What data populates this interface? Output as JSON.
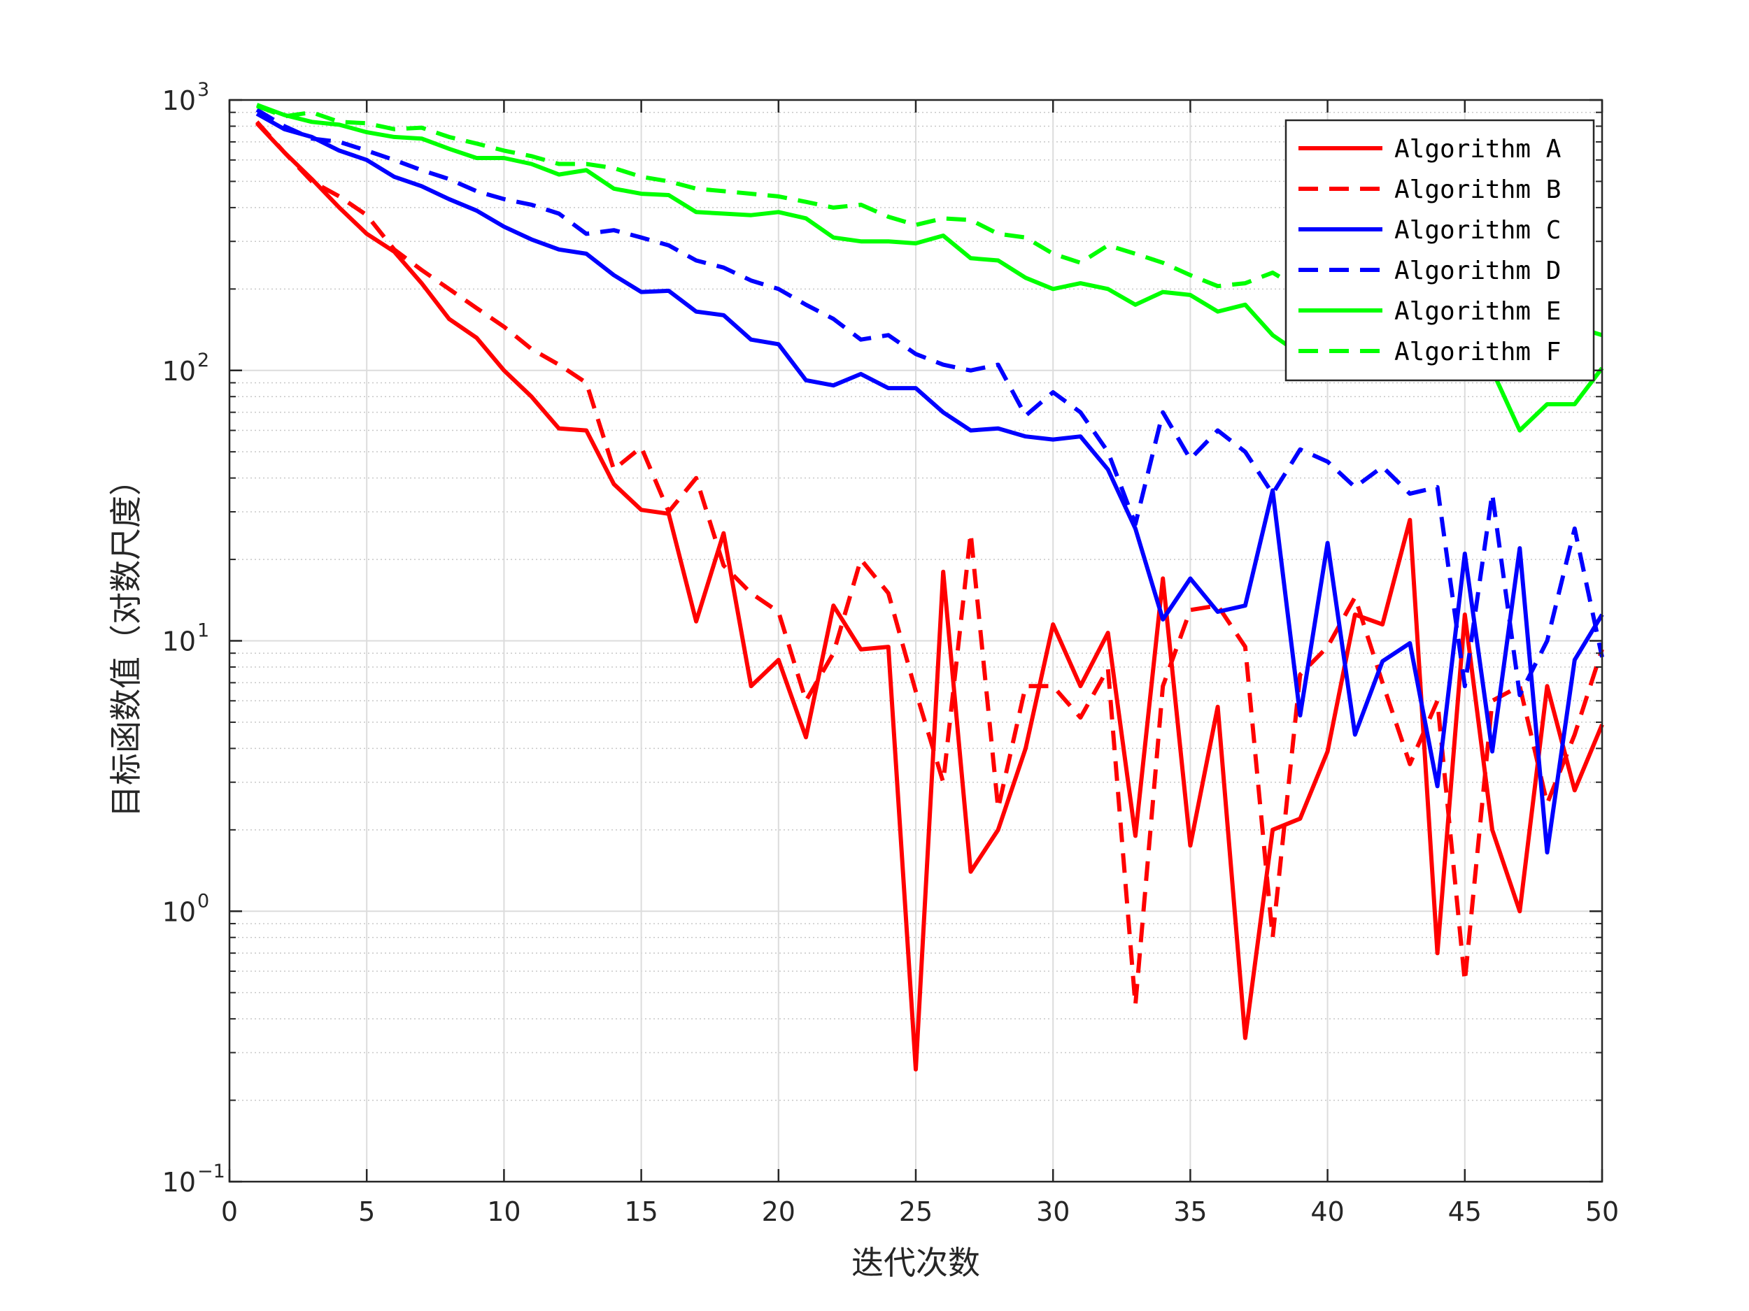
{
  "chart_data": {
    "type": "line",
    "title": "",
    "xlabel": "迭代次数",
    "ylabel": "目标函数值（对数尺度）",
    "xlim": [
      0,
      50
    ],
    "ylim": [
      0.1,
      1000
    ],
    "y_scale": "log",
    "x_ticks": [
      {
        "value": 0,
        "label": "0"
      },
      {
        "value": 5,
        "label": "5"
      },
      {
        "value": 10,
        "label": "10"
      },
      {
        "value": 15,
        "label": "15"
      },
      {
        "value": 20,
        "label": "20"
      },
      {
        "value": 25,
        "label": "25"
      },
      {
        "value": 30,
        "label": "30"
      },
      {
        "value": 35,
        "label": "35"
      },
      {
        "value": 40,
        "label": "40"
      },
      {
        "value": 45,
        "label": "45"
      },
      {
        "value": 50,
        "label": "50"
      }
    ],
    "y_ticks": [
      {
        "value": 0.1,
        "base": "10",
        "exp": "−1"
      },
      {
        "value": 1,
        "base": "10",
        "exp": "0"
      },
      {
        "value": 10,
        "base": "10",
        "exp": "1"
      },
      {
        "value": 100,
        "base": "10",
        "exp": "2"
      },
      {
        "value": 1000,
        "base": "10",
        "exp": "3"
      }
    ],
    "grid": true,
    "minor_grid": true,
    "legend_position": "top-right",
    "x": [
      1,
      2,
      3,
      4,
      5,
      6,
      7,
      8,
      9,
      10,
      11,
      12,
      13,
      14,
      15,
      16,
      17,
      18,
      19,
      20,
      21,
      22,
      23,
      24,
      25,
      26,
      27,
      28,
      29,
      30,
      31,
      32,
      33,
      34,
      35,
      36,
      37,
      38,
      39,
      40,
      41,
      42,
      43,
      44,
      45,
      46,
      47,
      48,
      49,
      50
    ],
    "series": [
      {
        "name": "Algorithm A",
        "color": "#ff0000",
        "dash": "solid",
        "values": [
          820,
          640,
          510,
          400,
          320,
          275,
          210,
          155,
          132,
          100,
          80,
          61,
          60,
          38,
          30.5,
          29.5,
          11.8,
          25,
          6.8,
          8.5,
          4.4,
          13.5,
          9.3,
          9.5,
          0.26,
          18,
          1.4,
          2.0,
          4.0,
          11.5,
          6.8,
          10.7,
          1.9,
          17,
          1.75,
          5.7,
          0.34,
          2.0,
          2.2,
          3.9,
          12.5,
          11.5,
          28,
          0.7,
          12.5,
          2.0,
          1.0,
          6.8,
          2.8,
          4.9
        ]
      },
      {
        "name": "Algorithm B",
        "color": "#ff0000",
        "dash": "dashed",
        "values": [
          830,
          640,
          500,
          440,
          375,
          280,
          235,
          200,
          170,
          145,
          120,
          105,
          90,
          43,
          52,
          30,
          40,
          19,
          15,
          12.8,
          6.0,
          9.0,
          20,
          15,
          6.5,
          3.0,
          25,
          2.4,
          6.8,
          6.8,
          5.2,
          7.9,
          0.45,
          6.8,
          13,
          13.5,
          9.5,
          0.8,
          7.5,
          9.5,
          14.5,
          7.0,
          3.5,
          6.0,
          0.55,
          6.0,
          6.8,
          2.5,
          4.5,
          9.3
        ]
      },
      {
        "name": "Algorithm C",
        "color": "#0000ff",
        "dash": "solid",
        "values": [
          890,
          780,
          730,
          650,
          600,
          520,
          480,
          430,
          390,
          340,
          305,
          280,
          270,
          225,
          195,
          197,
          165,
          160,
          130,
          125,
          92,
          88,
          97,
          86,
          86,
          70,
          60,
          61,
          57,
          55.5,
          57,
          43,
          26,
          12,
          17,
          12.8,
          13.5,
          36,
          5.3,
          23,
          4.5,
          8.4,
          9.8,
          2.9,
          21,
          3.9,
          22,
          1.65,
          8.5,
          12.5
        ]
      },
      {
        "name": "Algorithm D",
        "color": "#0000ff",
        "dash": "dashed",
        "values": [
          920,
          800,
          720,
          700,
          650,
          600,
          550,
          510,
          460,
          430,
          410,
          380,
          320,
          330,
          310,
          290,
          255,
          240,
          215,
          200,
          175,
          155,
          130,
          135,
          115,
          105,
          100,
          105,
          68,
          83,
          70,
          50,
          27,
          70,
          47,
          60,
          50,
          35,
          51,
          46,
          37,
          44,
          35,
          37,
          6.8,
          35,
          6.3,
          10,
          26,
          8.7
        ]
      },
      {
        "name": "Algorithm E",
        "color": "#00ff00",
        "dash": "solid",
        "values": [
          960,
          880,
          830,
          810,
          760,
          730,
          720,
          660,
          610,
          610,
          580,
          530,
          550,
          470,
          450,
          445,
          385,
          380,
          375,
          385,
          365,
          310,
          300,
          300,
          295,
          315,
          260,
          255,
          220,
          200,
          210,
          200,
          175,
          195,
          190,
          165,
          175,
          135,
          115,
          110,
          120,
          125,
          115,
          130,
          135,
          100,
          60,
          75,
          75,
          102
        ]
      },
      {
        "name": "Algorithm F",
        "color": "#00ff00",
        "dash": "dashed",
        "values": [
          950,
          870,
          900,
          830,
          820,
          780,
          790,
          730,
          690,
          650,
          620,
          580,
          580,
          560,
          520,
          500,
          470,
          460,
          450,
          440,
          420,
          400,
          410,
          370,
          345,
          365,
          360,
          320,
          310,
          270,
          250,
          290,
          270,
          250,
          225,
          205,
          210,
          230,
          200,
          185,
          175,
          165,
          160,
          165,
          150,
          145,
          140,
          150,
          145,
          135
        ]
      }
    ]
  }
}
